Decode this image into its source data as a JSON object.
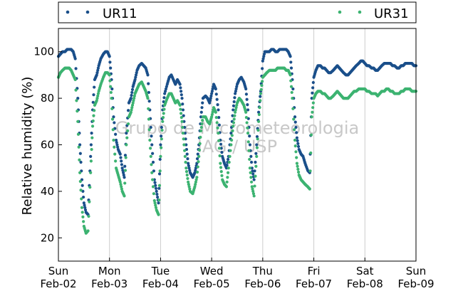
{
  "chart_data": {
    "type": "scatter",
    "title": "",
    "xlabel": "",
    "ylabel": "Relative humidity (%)",
    "xlim": [
      "2014-02-02 00:00",
      "2014-02-09 00:00"
    ],
    "ylim": [
      10,
      110
    ],
    "yticks": [
      20,
      40,
      60,
      80,
      100
    ],
    "xticks": [
      {
        "top": "Sun",
        "bottom": "Feb-02"
      },
      {
        "top": "Mon",
        "bottom": "Feb-03"
      },
      {
        "top": "Tue",
        "bottom": "Feb-04"
      },
      {
        "top": "Wed",
        "bottom": "Feb-05"
      },
      {
        "top": "Thu",
        "bottom": "Feb-06"
      },
      {
        "top": "Fri",
        "bottom": "Feb-07"
      },
      {
        "top": "Sat",
        "bottom": "Feb-08"
      },
      {
        "top": "Sun",
        "bottom": "Feb-09"
      }
    ],
    "grid": "vertical",
    "legend": {
      "position": "top",
      "entries": [
        "UR11",
        "UR31"
      ]
    },
    "watermark": [
      "Grupo de Micrometeorologia",
      "IAG / USP"
    ],
    "x_unit": "day offset from Feb-02 00:00",
    "series": [
      {
        "name": "UR11",
        "color": "#1a4f8a",
        "x": [
          0.0,
          0.04,
          0.08,
          0.13,
          0.17,
          0.21,
          0.25,
          0.29,
          0.33,
          0.38,
          0.42,
          0.46,
          0.5,
          0.54,
          0.58,
          0.63,
          0.67,
          0.71,
          0.75,
          0.79,
          0.83,
          0.88,
          0.92,
          0.96,
          1.0,
          1.04,
          1.08,
          1.13,
          1.17,
          1.21,
          1.25,
          1.29,
          1.33,
          1.38,
          1.42,
          1.46,
          1.5,
          1.54,
          1.58,
          1.63,
          1.67,
          1.71,
          1.75,
          1.79,
          1.83,
          1.88,
          1.92,
          1.96,
          2.0,
          2.04,
          2.08,
          2.13,
          2.17,
          2.21,
          2.25,
          2.29,
          2.33,
          2.38,
          2.42,
          2.46,
          2.5,
          2.54,
          2.58,
          2.63,
          2.67,
          2.71,
          2.75,
          2.79,
          2.83,
          2.88,
          2.92,
          2.96,
          3.0,
          3.04,
          3.08,
          3.13,
          3.17,
          3.21,
          3.25,
          3.29,
          3.33,
          3.38,
          3.42,
          3.46,
          3.5,
          3.54,
          3.58,
          3.63,
          3.67,
          3.71,
          3.75,
          3.79,
          3.83,
          3.88,
          3.92,
          3.96,
          4.0,
          4.04,
          4.08,
          4.13,
          4.17,
          4.21,
          4.25,
          4.29,
          4.33,
          4.38,
          4.42,
          4.46,
          4.5,
          4.54,
          4.58,
          4.63,
          4.67,
          4.71,
          4.75,
          4.79,
          4.83,
          4.88,
          4.92,
          4.96,
          5.0,
          5.04,
          5.08,
          5.13,
          5.17,
          5.21,
          5.25,
          5.29,
          5.33,
          5.38,
          5.42,
          5.46,
          5.5,
          5.54,
          5.58,
          5.63,
          5.67,
          5.71,
          5.75,
          5.79,
          5.83,
          5.88,
          5.92,
          5.96,
          6.0,
          6.04,
          6.08,
          6.13,
          6.17,
          6.21,
          6.25,
          6.29,
          6.33,
          6.38,
          6.42,
          6.46,
          6.5,
          6.54,
          6.58,
          6.63,
          6.67,
          6.71,
          6.75,
          6.79,
          6.83,
          6.88,
          6.92,
          6.96,
          7.0
        ],
        "y": [
          98,
          99,
          100,
          100,
          101,
          101,
          101,
          100,
          97,
          80,
          60,
          45,
          35,
          31,
          30,
          55,
          75,
          88,
          90,
          94,
          97,
          99,
          100,
          100,
          98,
          88,
          72,
          62,
          58,
          56,
          50,
          46,
          65,
          78,
          80,
          85,
          88,
          92,
          94,
          95,
          94,
          93,
          90,
          75,
          60,
          45,
          40,
          35,
          60,
          75,
          82,
          86,
          89,
          90,
          88,
          86,
          88,
          86,
          80,
          70,
          60,
          52,
          48,
          46,
          48,
          52,
          60,
          72,
          80,
          81,
          80,
          78,
          82,
          86,
          84,
          75,
          62,
          55,
          52,
          50,
          55,
          65,
          75,
          82,
          86,
          88,
          89,
          87,
          84,
          75,
          60,
          50,
          45,
          60,
          74,
          83,
          96,
          100,
          100,
          100,
          101,
          101,
          100,
          100,
          101,
          101,
          101,
          101,
          100,
          98,
          88,
          72,
          63,
          58,
          56,
          55,
          52,
          49,
          48,
          80,
          89,
          92,
          94,
          94,
          93,
          93,
          92,
          91,
          91,
          92,
          93,
          94,
          93,
          92,
          91,
          90,
          90,
          91,
          92,
          93,
          94,
          95,
          96,
          96,
          95,
          94,
          94,
          93,
          93,
          92,
          92,
          93,
          94,
          95,
          95,
          95,
          95,
          94,
          94,
          93,
          93,
          94,
          94,
          95,
          95,
          95,
          95,
          94,
          94
        ]
      },
      {
        "name": "UR31",
        "color": "#3cb371",
        "x": [
          0.0,
          0.04,
          0.08,
          0.13,
          0.17,
          0.21,
          0.25,
          0.29,
          0.33,
          0.38,
          0.42,
          0.46,
          0.5,
          0.54,
          0.58,
          0.63,
          0.67,
          0.71,
          0.75,
          0.79,
          0.83,
          0.88,
          0.92,
          0.96,
          1.0,
          1.04,
          1.08,
          1.13,
          1.17,
          1.21,
          1.25,
          1.29,
          1.33,
          1.38,
          1.42,
          1.46,
          1.5,
          1.54,
          1.58,
          1.63,
          1.67,
          1.71,
          1.75,
          1.79,
          1.83,
          1.88,
          1.92,
          1.96,
          2.0,
          2.04,
          2.08,
          2.13,
          2.17,
          2.21,
          2.25,
          2.29,
          2.33,
          2.38,
          2.42,
          2.46,
          2.5,
          2.54,
          2.58,
          2.63,
          2.67,
          2.71,
          2.75,
          2.79,
          2.83,
          2.88,
          2.92,
          2.96,
          3.0,
          3.04,
          3.08,
          3.13,
          3.17,
          3.21,
          3.25,
          3.29,
          3.33,
          3.38,
          3.42,
          3.46,
          3.5,
          3.54,
          3.58,
          3.63,
          3.67,
          3.71,
          3.75,
          3.79,
          3.83,
          3.88,
          3.92,
          3.96,
          4.0,
          4.04,
          4.08,
          4.13,
          4.17,
          4.21,
          4.25,
          4.29,
          4.33,
          4.38,
          4.42,
          4.46,
          4.5,
          4.54,
          4.58,
          4.63,
          4.67,
          4.71,
          4.75,
          4.79,
          4.83,
          4.88,
          4.92,
          4.96,
          5.0,
          5.04,
          5.08,
          5.13,
          5.17,
          5.21,
          5.25,
          5.29,
          5.33,
          5.38,
          5.42,
          5.46,
          5.5,
          5.54,
          5.58,
          5.63,
          5.67,
          5.71,
          5.75,
          5.79,
          5.83,
          5.88,
          5.92,
          5.96,
          6.0,
          6.04,
          6.08,
          6.13,
          6.17,
          6.21,
          6.25,
          6.29,
          6.33,
          6.38,
          6.42,
          6.46,
          6.5,
          6.54,
          6.58,
          6.63,
          6.67,
          6.71,
          6.75,
          6.79,
          6.83,
          6.88,
          6.92,
          6.96,
          7.0
        ],
        "y": [
          89,
          91,
          92,
          93,
          93,
          93,
          92,
          90,
          88,
          70,
          48,
          33,
          25,
          22,
          23,
          48,
          68,
          77,
          79,
          83,
          86,
          89,
          91,
          91,
          90,
          80,
          62,
          50,
          47,
          44,
          40,
          38,
          60,
          72,
          74,
          78,
          82,
          84,
          86,
          87,
          85,
          83,
          80,
          62,
          48,
          36,
          32,
          30,
          55,
          70,
          77,
          80,
          82,
          82,
          80,
          78,
          79,
          77,
          70,
          60,
          50,
          44,
          40,
          39,
          42,
          46,
          55,
          66,
          72,
          72,
          70,
          69,
          72,
          76,
          74,
          65,
          52,
          45,
          43,
          42,
          50,
          60,
          68,
          74,
          78,
          80,
          79,
          77,
          74,
          65,
          50,
          42,
          38,
          55,
          70,
          82,
          89,
          90,
          91,
          92,
          92,
          92,
          92,
          93,
          93,
          93,
          93,
          92,
          92,
          90,
          80,
          62,
          52,
          47,
          45,
          44,
          43,
          42,
          41,
          72,
          80,
          82,
          83,
          83,
          82,
          82,
          81,
          80,
          80,
          81,
          82,
          83,
          82,
          81,
          80,
          80,
          80,
          81,
          82,
          83,
          83,
          84,
          84,
          84,
          84,
          83,
          83,
          82,
          82,
          82,
          81,
          82,
          83,
          83,
          84,
          84,
          83,
          83,
          82,
          82,
          82,
          83,
          83,
          84,
          84,
          84,
          83,
          83,
          83
        ]
      }
    ]
  }
}
